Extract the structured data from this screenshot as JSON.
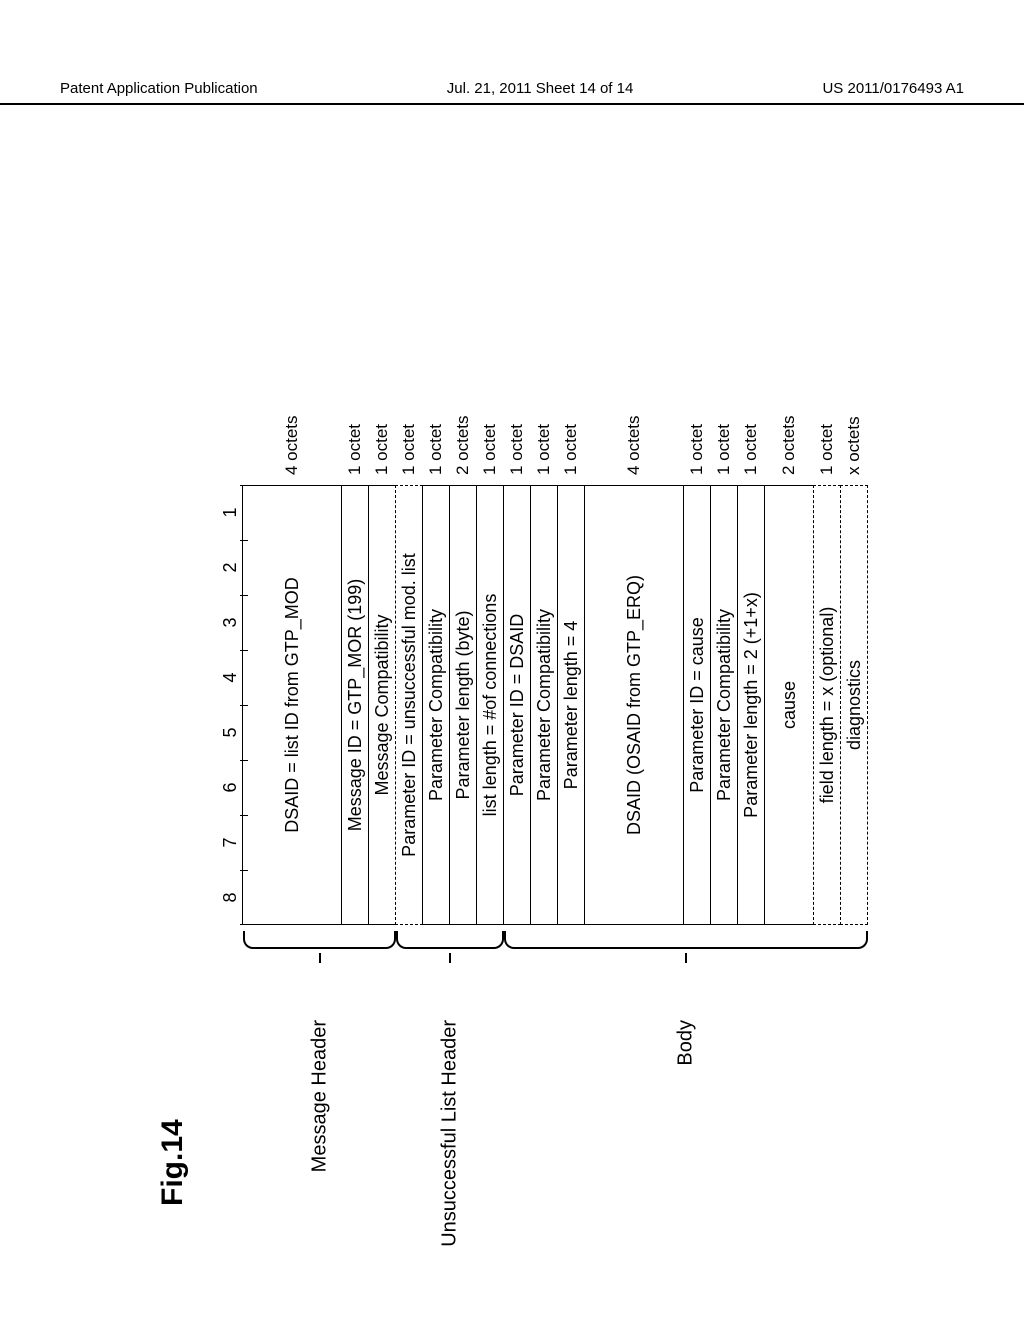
{
  "page_header": {
    "left": "Patent Application Publication",
    "center": "Jul. 21, 2011  Sheet 14 of 14",
    "right": "US 2011/0176493 A1"
  },
  "figure_title": "Fig.14",
  "bit_ruler": [
    "8",
    "7",
    "6",
    "5",
    "4",
    "3",
    "2",
    "1"
  ],
  "heights": {
    "h1": 100,
    "h2": 28,
    "h3": 28,
    "h4": 28,
    "h5": 28,
    "h6": 28,
    "h7": 28,
    "h8": 28,
    "h9": 28,
    "h10": 28,
    "h11": 100,
    "h12": 28,
    "h13": 28,
    "h14": 28,
    "h15": 50,
    "h16": 28,
    "h17": 28
  },
  "sections": {
    "msg_header": {
      "label": "Message Header",
      "rows": [
        {
          "text": "DSAID = list ID from GTP_MOD",
          "octets": "4 octets",
          "hkey": "h1",
          "dashed": false
        },
        {
          "text": "Message ID = GTP_MOR (199)",
          "octets": "1 octet",
          "hkey": "h2",
          "dashed": false
        },
        {
          "text": "Message Compatibility",
          "octets": "1 octet",
          "hkey": "h3",
          "dashed": false
        }
      ]
    },
    "unsuccessful": {
      "label": "Unsuccessful List Header",
      "rows": [
        {
          "text": "Parameter ID = unsuccessful mod. list",
          "octets": "1 octet",
          "hkey": "h4",
          "dashed": true
        },
        {
          "text": "Parameter Compatibility",
          "octets": "1 octet",
          "hkey": "h5",
          "dashed": false
        },
        {
          "text": "Parameter length (byte)",
          "octets": "2 octets",
          "hkey": "h6",
          "dashed": false
        },
        {
          "text": "list length = #of connections",
          "octets": "1 octet",
          "hkey": "h7",
          "dashed": false
        }
      ]
    },
    "body": {
      "label": "Body",
      "rows": [
        {
          "text": "Parameter ID = DSAID",
          "octets": "1 octet",
          "hkey": "h8",
          "dashed": false
        },
        {
          "text": "Parameter Compatibility",
          "octets": "1 octet",
          "hkey": "h9",
          "dashed": false
        },
        {
          "text": "Parameter length = 4",
          "octets": "1 octet",
          "hkey": "h10",
          "dashed": false
        },
        {
          "text": "DSAID (OSAID from GTP_ERQ)",
          "octets": "4 octets",
          "hkey": "h11",
          "dashed": false
        },
        {
          "text": "Parameter ID = cause",
          "octets": "1 octet",
          "hkey": "h12",
          "dashed": false
        },
        {
          "text": "Parameter Compatibility",
          "octets": "1 octet",
          "hkey": "h13",
          "dashed": false
        },
        {
          "text": "Parameter length = 2 (+1+x)",
          "octets": "1 octet",
          "hkey": "h14",
          "dashed": false
        },
        {
          "text": "cause",
          "octets": "2 octets",
          "hkey": "h15",
          "dashed": false
        },
        {
          "text": "field length = x (optional)",
          "octets": "1 octet",
          "hkey": "h16",
          "dashed": true
        },
        {
          "text": "diagnostics",
          "octets": "x octets",
          "hkey": "h17",
          "dashed": true
        }
      ]
    }
  },
  "colors": {
    "border": "#000000",
    "background": "#ffffff",
    "text": "#000000"
  }
}
